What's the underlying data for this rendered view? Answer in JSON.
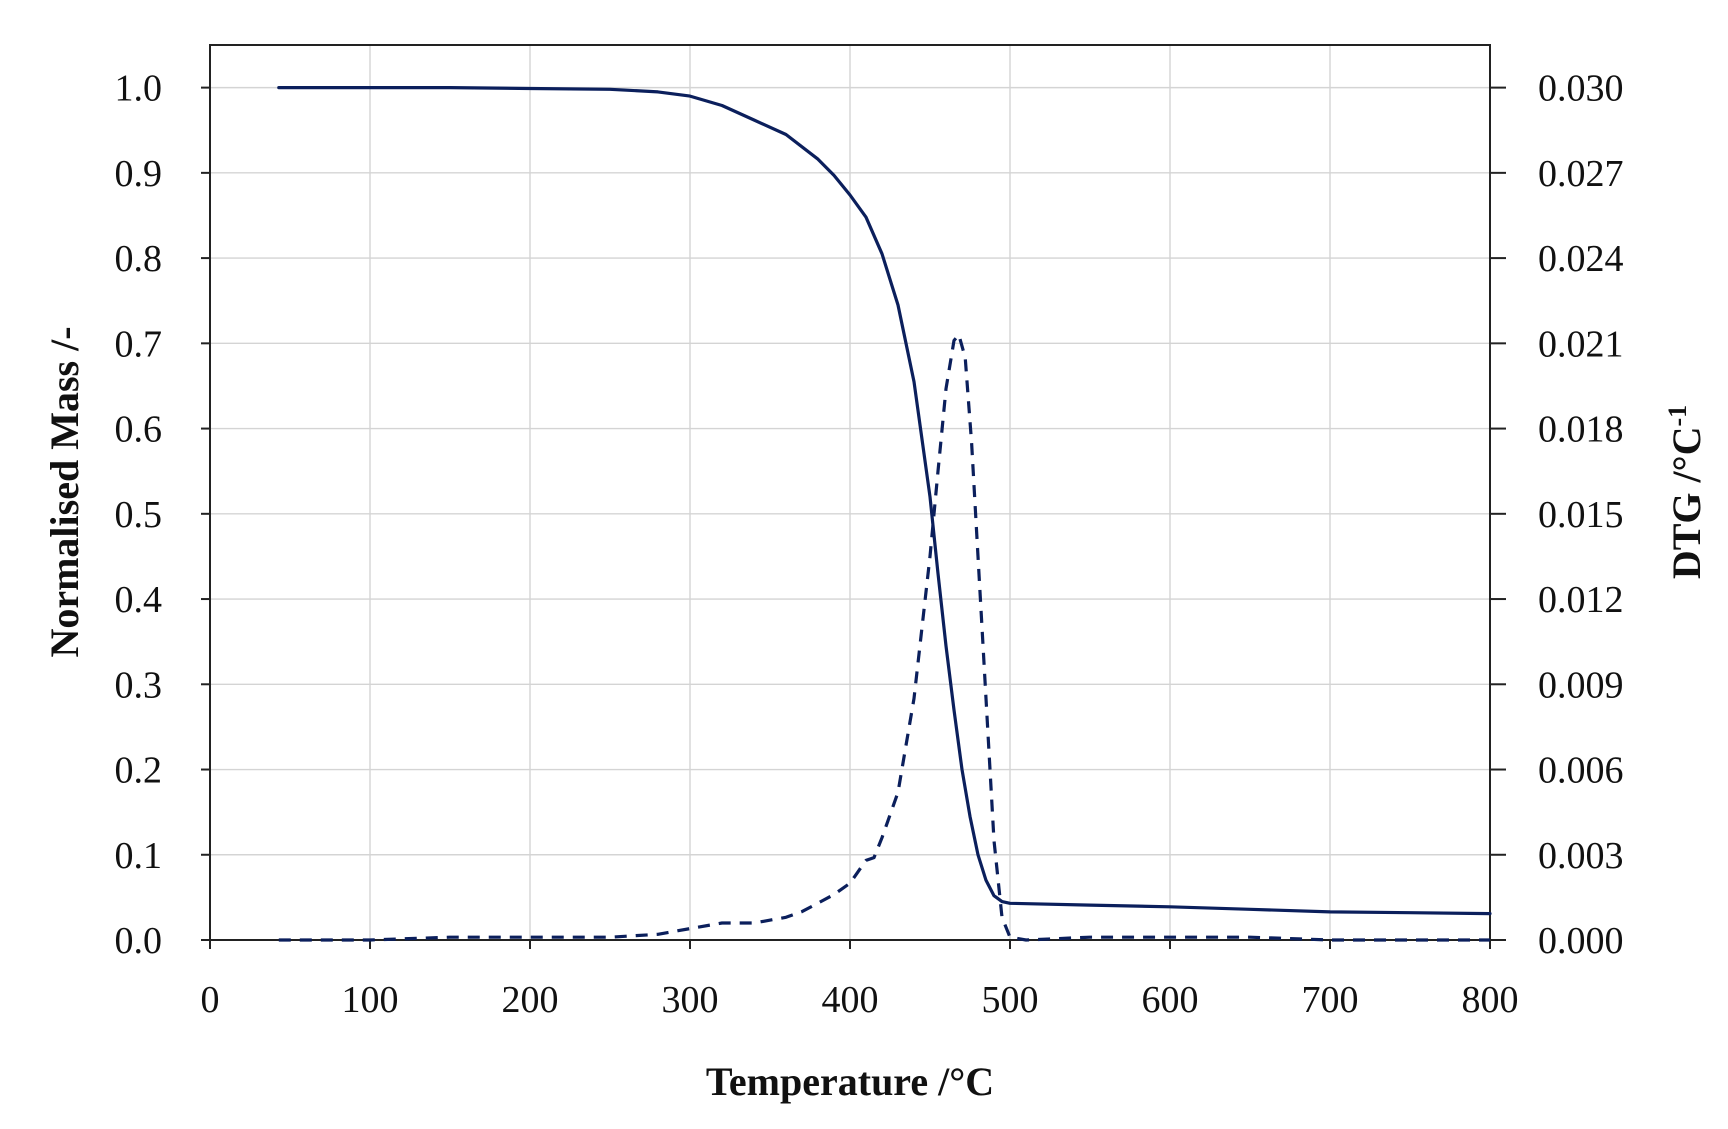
{
  "chart_data": {
    "type": "line",
    "title": "",
    "xlabel": "Temperature /°C",
    "ylabel": "Normalised Mass /-",
    "y2label": "DTG  /°C",
    "y2label_sup": "-1",
    "xlim": [
      0,
      800
    ],
    "ylim": [
      0,
      1.05
    ],
    "y2lim": [
      0,
      0.0315
    ],
    "xticks": [
      "0",
      "100",
      "200",
      "300",
      "400",
      "500",
      "600",
      "700",
      "800"
    ],
    "yticks": [
      "0.0",
      "0.1",
      "0.2",
      "0.3",
      "0.4",
      "0.5",
      "0.6",
      "0.7",
      "0.8",
      "0.9",
      "1.0"
    ],
    "y2ticks": [
      "0.000",
      "0.003",
      "0.006",
      "0.009",
      "0.012",
      "0.015",
      "0.018",
      "0.021",
      "0.024",
      "0.027",
      "0.030"
    ],
    "grid": true,
    "legend": "none",
    "color": "#0b1f5c",
    "series": [
      {
        "axis": "left",
        "style": "solid",
        "x": [
          43,
          60,
          80,
          100,
          150,
          200,
          250,
          280,
          300,
          320,
          340,
          360,
          380,
          390,
          400,
          410,
          420,
          430,
          440,
          450,
          455,
          460,
          465,
          470,
          475,
          480,
          485,
          490,
          495,
          500,
          550,
          600,
          650,
          700,
          750,
          800
        ],
        "y": [
          1.0,
          1.0,
          1.0,
          1.0,
          1.0,
          0.999,
          0.998,
          0.995,
          0.99,
          0.979,
          0.962,
          0.945,
          0.916,
          0.897,
          0.874,
          0.848,
          0.805,
          0.745,
          0.655,
          0.52,
          0.43,
          0.345,
          0.27,
          0.2,
          0.145,
          0.1,
          0.07,
          0.052,
          0.045,
          0.043,
          0.041,
          0.039,
          0.036,
          0.033,
          0.032,
          0.031
        ]
      },
      {
        "axis": "right",
        "style": "dashed",
        "x": [
          43,
          100,
          150,
          200,
          250,
          280,
          300,
          320,
          340,
          360,
          370,
          380,
          390,
          400,
          405,
          410,
          415,
          420,
          430,
          440,
          450,
          455,
          460,
          465,
          468,
          472,
          476,
          480,
          485,
          490,
          495,
          500,
          510,
          550,
          600,
          650,
          700,
          750,
          800
        ],
        "y": [
          0.0,
          0.0,
          0.0001,
          0.0001,
          0.0001,
          0.0002,
          0.0004,
          0.0006,
          0.0006,
          0.0008,
          0.001,
          0.0013,
          0.0016,
          0.002,
          0.0024,
          0.0028,
          0.0029,
          0.0036,
          0.0052,
          0.0085,
          0.0135,
          0.0165,
          0.0194,
          0.0211,
          0.0213,
          0.0205,
          0.0175,
          0.0135,
          0.0085,
          0.0035,
          0.0008,
          0.0001,
          0.0,
          0.0001,
          0.0001,
          0.0001,
          0.0,
          0.0,
          0.0
        ]
      }
    ]
  }
}
